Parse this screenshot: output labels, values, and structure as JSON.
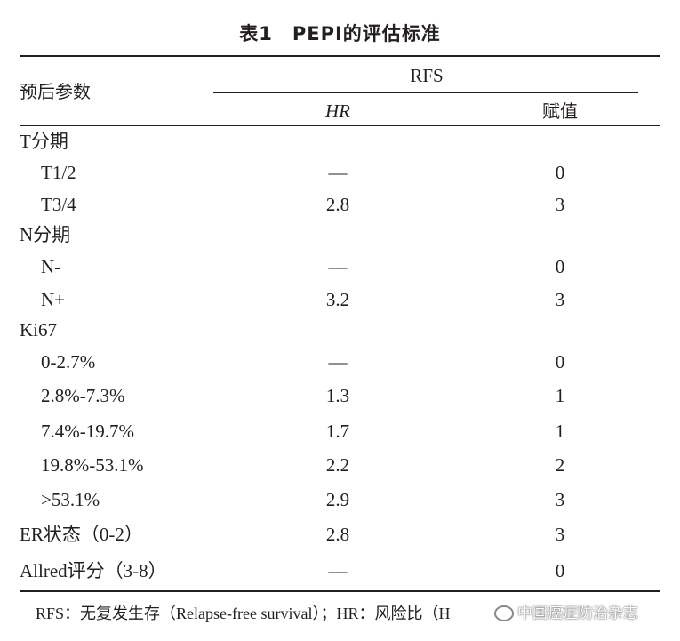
{
  "title": "表1　PEPI的评估标准",
  "header": {
    "param": "预后参数",
    "group": "RFS",
    "hr": "HR",
    "value": "赋值"
  },
  "rows": [
    {
      "label": "T分期",
      "hr": "",
      "value": "",
      "indent": false
    },
    {
      "label": "T1/2",
      "hr": "—",
      "value": "0",
      "indent": true
    },
    {
      "label": "T3/4",
      "hr": "2.8",
      "value": "3",
      "indent": true
    },
    {
      "label": "N分期",
      "hr": "",
      "value": "",
      "indent": false
    },
    {
      "label": "N-",
      "hr": "—",
      "value": "0",
      "indent": true
    },
    {
      "label": "N+",
      "hr": "3.2",
      "value": "3",
      "indent": true
    },
    {
      "label": "Ki67",
      "hr": "",
      "value": "",
      "indent": false
    },
    {
      "label": "0-2.7%",
      "hr": "—",
      "value": "0",
      "indent": true
    },
    {
      "label": "2.8%-7.3%",
      "hr": "1.3",
      "value": "1",
      "indent": true
    },
    {
      "label": "7.4%-19.7%",
      "hr": "1.7",
      "value": "1",
      "indent": true
    },
    {
      "label": "19.8%-53.1%",
      "hr": "2.2",
      "value": "2",
      "indent": true
    },
    {
      "label": ">53.1%",
      "hr": "2.9",
      "value": "3",
      "indent": true
    },
    {
      "label": "ER状态（0-2）",
      "hr": "2.8",
      "value": "3",
      "indent": false
    },
    {
      "label": "Allred评分（3-8）",
      "hr": "—",
      "value": "0",
      "indent": false
    }
  ],
  "footnote": "RFS：无复发生存（Relapse-free survival）；HR：风险比（H",
  "watermark": "中国癌症防治杂志",
  "watermark_icon": "wechat-icon"
}
